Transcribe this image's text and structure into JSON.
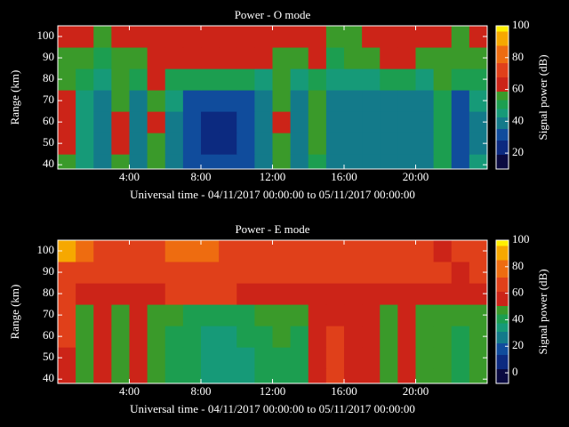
{
  "chart_data": [
    {
      "type": "heatmap",
      "title": "Power - O mode",
      "x_label": "Universal time - 04/11/2017 00:00:00 to 05/11/2017 00:00:00",
      "y_label": "Range (km)",
      "colorbar_label": "Signal power (dB)",
      "xlim": [
        0,
        24
      ],
      "ylim": [
        38,
        105
      ],
      "xticks": [
        {
          "value": 4,
          "label": "4:00"
        },
        {
          "value": 8,
          "label": "8:00"
        },
        {
          "value": 12,
          "label": "12:00"
        },
        {
          "value": 16,
          "label": "16:00"
        },
        {
          "value": 20,
          "label": "20:00"
        }
      ],
      "yticks": [
        40,
        50,
        60,
        70,
        80,
        90,
        100
      ],
      "clim": [
        10,
        100
      ],
      "cticks": [
        20,
        40,
        60,
        80,
        100
      ],
      "x_bins": [
        0,
        1,
        2,
        3,
        4,
        5,
        6,
        7,
        8,
        9,
        10,
        11,
        12,
        13,
        14,
        15,
        16,
        17,
        18,
        19,
        20,
        21,
        22,
        23,
        24
      ],
      "y_bins": [
        38,
        45,
        55,
        65,
        75,
        85,
        95,
        105
      ],
      "values": [
        [
          58,
          45,
          42,
          58,
          42,
          56,
          42,
          35,
          30,
          28,
          32,
          40,
          56,
          40,
          52,
          40,
          40,
          40,
          40,
          42,
          40,
          48,
          35,
          45
        ],
        [
          60,
          45,
          40,
          60,
          42,
          58,
          42,
          32,
          25,
          25,
          30,
          40,
          58,
          40,
          55,
          40,
          38,
          38,
          40,
          42,
          38,
          50,
          32,
          42
        ],
        [
          62,
          45,
          38,
          60,
          40,
          60,
          42,
          32,
          26,
          25,
          30,
          40,
          60,
          40,
          55,
          40,
          38,
          38,
          40,
          42,
          38,
          50,
          32,
          42
        ],
        [
          60,
          45,
          40,
          58,
          42,
          58,
          45,
          35,
          30,
          28,
          35,
          42,
          58,
          42,
          55,
          40,
          40,
          38,
          40,
          42,
          40,
          52,
          35,
          45
        ],
        [
          55,
          48,
          45,
          55,
          48,
          60,
          50,
          48,
          50,
          48,
          50,
          45,
          56,
          45,
          50,
          45,
          45,
          45,
          48,
          48,
          45,
          55,
          52,
          50
        ],
        [
          58,
          55,
          52,
          58,
          56,
          60,
          62,
          62,
          63,
          62,
          62,
          60,
          58,
          58,
          60,
          52,
          55,
          58,
          60,
          60,
          58,
          58,
          56,
          58
        ],
        [
          62,
          60,
          58,
          62,
          60,
          62,
          64,
          66,
          66,
          66,
          64,
          62,
          60,
          60,
          62,
          58,
          58,
          60,
          62,
          62,
          60,
          62,
          55,
          60
        ]
      ]
    },
    {
      "type": "heatmap",
      "title": "Power - E mode",
      "x_label": "Universal time - 04/11/2017 00:00:00 to 05/11/2017 00:00:00",
      "y_label": "Range (km)",
      "colorbar_label": "Signal power (dB)",
      "xlim": [
        0,
        24
      ],
      "ylim": [
        38,
        105
      ],
      "xticks": [
        {
          "value": 4,
          "label": "4:00"
        },
        {
          "value": 8,
          "label": "8:00"
        },
        {
          "value": 12,
          "label": "12:00"
        },
        {
          "value": 16,
          "label": "16:00"
        },
        {
          "value": 20,
          "label": "20:00"
        }
      ],
      "yticks": [
        40,
        50,
        60,
        70,
        80,
        90,
        100
      ],
      "clim": [
        -8,
        100
      ],
      "cticks": [
        0,
        20,
        40,
        60,
        80,
        100
      ],
      "x_bins": [
        0,
        1,
        2,
        3,
        4,
        5,
        6,
        7,
        8,
        9,
        10,
        11,
        12,
        13,
        14,
        15,
        16,
        17,
        18,
        19,
        20,
        21,
        22,
        23,
        24
      ],
      "y_bins": [
        38,
        45,
        55,
        65,
        75,
        85,
        95,
        105
      ],
      "values": [
        [
          60,
          50,
          58,
          48,
          56,
          46,
          42,
          38,
          35,
          32,
          35,
          38,
          42,
          40,
          58,
          62,
          58,
          58,
          48,
          52,
          46,
          45,
          42,
          45
        ],
        [
          60,
          48,
          58,
          46,
          56,
          45,
          42,
          38,
          35,
          32,
          35,
          38,
          42,
          40,
          58,
          62,
          58,
          58,
          48,
          52,
          46,
          45,
          40,
          45
        ],
        [
          62,
          48,
          60,
          46,
          58,
          46,
          42,
          38,
          35,
          35,
          38,
          40,
          44,
          42,
          58,
          62,
          58,
          56,
          48,
          52,
          48,
          45,
          42,
          45
        ],
        [
          62,
          48,
          60,
          48,
          58,
          48,
          46,
          42,
          40,
          40,
          42,
          44,
          48,
          45,
          58,
          60,
          55,
          55,
          48,
          52,
          50,
          45,
          45,
          48
        ],
        [
          62,
          60,
          58,
          60,
          58,
          60,
          62,
          62,
          62,
          62,
          60,
          60,
          60,
          60,
          60,
          56,
          58,
          60,
          60,
          58,
          58,
          55,
          52,
          58
        ],
        [
          70,
          66,
          64,
          66,
          65,
          66,
          68,
          68,
          68,
          68,
          68,
          66,
          66,
          66,
          66,
          62,
          62,
          66,
          66,
          66,
          62,
          62,
          60,
          62
        ],
        [
          90,
          72,
          68,
          70,
          68,
          70,
          72,
          72,
          72,
          70,
          70,
          68,
          68,
          70,
          70,
          65,
          66,
          68,
          70,
          70,
          66,
          60,
          62,
          64
        ]
      ]
    }
  ]
}
